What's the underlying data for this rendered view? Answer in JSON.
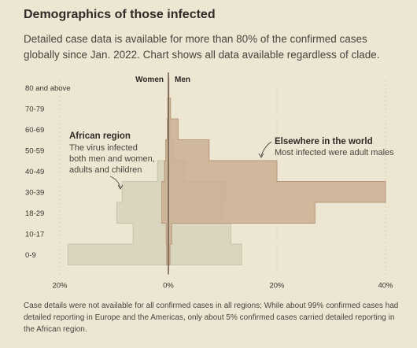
{
  "header": {
    "title": "Demographics of those infected",
    "subtitle": "Detailed case data is available for more than 80% of the confirmed cases globally since Jan. 2022. Chart shows all data available regardless of clade."
  },
  "footnote": "Case details were not available for all confirmed cases in all regions; While about 99% confirmed cases had detailed reporting in Europe and the Americas, only about 5% confirmed cases carried detailed reporting in the African region.",
  "colors": {
    "background": "#ede6d3",
    "africa_fill": "#d6d1bb",
    "africa_stroke": "#c9c3aa",
    "elsewhere_fill": "#c8ad8f",
    "elsewhere_stroke": "#b89878",
    "axis": "#6b5a4a"
  },
  "chart_data": {
    "type": "bar",
    "orientation": "horizontal-population-pyramid",
    "categories": [
      "0-9",
      "10-17",
      "18-29",
      "30-39",
      "40-49",
      "50-59",
      "60-69",
      "70-79",
      "80 and above"
    ],
    "legend": {
      "left": "Women",
      "right": "Men"
    },
    "xlim": [
      -20,
      40
    ],
    "xticks": [
      -20,
      0,
      20,
      40
    ],
    "xtick_labels": [
      "20%",
      "0%",
      "20%",
      "40%"
    ],
    "series": [
      {
        "region": "africa",
        "women": [
          18.5,
          6.5,
          9.5,
          8.5,
          2.0,
          0.3,
          0.1,
          0.0,
          0.0
        ],
        "men": [
          13.5,
          11.5,
          10.0,
          10.5,
          3.0,
          1.0,
          0.3,
          0.1,
          0.0
        ]
      },
      {
        "region": "elsewhere",
        "women": [
          0.3,
          0.4,
          1.2,
          1.2,
          0.7,
          0.5,
          0.2,
          0.1,
          0.0
        ],
        "men": [
          0.3,
          0.6,
          27.0,
          40.0,
          20.0,
          7.5,
          1.8,
          0.4,
          0.1
        ]
      }
    ],
    "annotations": [
      {
        "title": "African region",
        "text": [
          "The virus infected",
          "both men and women,",
          "adults and children"
        ]
      },
      {
        "title": "Elsewhere in the world",
        "text": [
          "Most infected were adult males"
        ]
      }
    ]
  }
}
